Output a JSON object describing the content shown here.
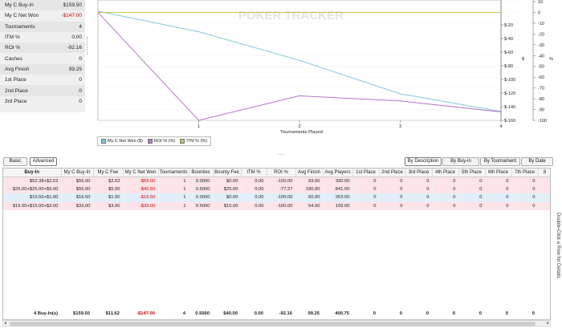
{
  "stats": [
    {
      "label": "My C Buy-In",
      "value": "$159.50",
      "neg": false
    },
    {
      "label": "My C Net Won",
      "value": "-$147.00",
      "neg": true
    },
    {
      "label": "Tournaments",
      "value": "4",
      "neg": false
    },
    {
      "label": "ITM %",
      "value": "0.00",
      "neg": false
    },
    {
      "label": "ROI %",
      "value": "-92.16",
      "neg": false
    },
    {
      "label": "Cashes",
      "value": "0",
      "neg": false
    },
    {
      "label": "Avg Finish",
      "value": "99.25",
      "neg": false
    },
    {
      "label": "1st Place",
      "value": "0",
      "neg": false
    },
    {
      "label": "2nd Place",
      "value": "0",
      "neg": false
    },
    {
      "label": "3rd Place",
      "value": "0",
      "neg": false
    }
  ],
  "watermark": "POKER TRACKER",
  "chart_data": {
    "type": "line",
    "xlabel": "Tournaments Played",
    "x": [
      0,
      1,
      2,
      3,
      4
    ],
    "xticks": [
      "1",
      "2",
      "3",
      "4"
    ],
    "xlim": [
      0,
      4
    ],
    "left_axis": {
      "ticks": [
        "$-20",
        "$-40",
        "$-60",
        "$-80",
        "$-100",
        "$-120",
        "$-140",
        "$-160"
      ],
      "label": "$",
      "ylim": [
        0,
        -160
      ]
    },
    "right_axis": {
      "ticks": [
        "10",
        "0",
        "-10",
        "-20",
        "-30",
        "-40",
        "-50",
        "-60",
        "-70",
        "-80",
        "-90",
        "-100"
      ],
      "label": "%",
      "ylim": [
        10,
        -100
      ]
    },
    "series": [
      {
        "name": "My C Net Won ($)",
        "axis": "left",
        "color": "#7fc8dc",
        "values": [
          0,
          -30,
          -72,
          -121,
          -147
        ]
      },
      {
        "name": "ROI % (%)",
        "axis": "right",
        "color": "#b873c8",
        "values": [
          0,
          -100,
          -77.27,
          -82,
          -92.16
        ]
      },
      {
        "name": "ITM % (%)",
        "axis": "right",
        "color": "#c8c060",
        "values": [
          0,
          0,
          0,
          0,
          0
        ]
      }
    ],
    "grid": true
  },
  "splitter": ".....",
  "toolbar": {
    "basic": "Basic",
    "advanced": "Advanced",
    "by_description": "By Description",
    "by_buyin": "By Buy-in",
    "by_tournament": "By Tournament",
    "by_date": "By Date"
  },
  "table": {
    "columns": [
      "Buy-In",
      "My C Buy-In",
      "My C Fee",
      "My C Net Won",
      "Tournaments",
      "Bounties",
      "Bounty Fee",
      "ITM %",
      "ROI %",
      "Avg Finish",
      "Avg Players",
      "1st Place",
      "2nd Place",
      "3rd Place",
      "4th Place",
      "5th Place",
      "6th Place",
      "7th Place",
      "8"
    ],
    "rows": [
      {
        "style": "pink",
        "cells": [
          "$52.38+$2.62",
          "$55.00",
          "$2.62",
          "-$55.00",
          "1",
          "0.0000",
          "$0.00",
          "0.00",
          "-100.00",
          "93.00",
          "390.00",
          "0",
          "0",
          "0",
          "0",
          "0",
          "0",
          "0",
          ""
        ]
      },
      {
        "style": "pink",
        "cells": [
          "$25.00+$25.00+$5.00",
          "$55.00",
          "$5.00",
          "-$42.50",
          "1",
          "0.5000",
          "$25.00",
          "0.00",
          "-77.27",
          "190.00",
          "841.00",
          "0",
          "0",
          "0",
          "0",
          "0",
          "0",
          "0",
          ""
        ]
      },
      {
        "style": "blue",
        "cells": [
          "$15.50+$1.00",
          "$16.50",
          "$1.00",
          "-$16.50",
          "1",
          "0.0000",
          "$0.00",
          "0.00",
          "-100.00",
          "60.00",
          "263.00",
          "0",
          "0",
          "0",
          "0",
          "0",
          "0",
          "0",
          ""
        ]
      },
      {
        "style": "pink",
        "cells": [
          "$15.00+$15.00+$3.00",
          "$33.00",
          "$3.00",
          "-$33.00",
          "1",
          "0.5000",
          "$15.00",
          "0.00",
          "-100.00",
          "54.00",
          "109.00",
          "0",
          "0",
          "0",
          "0",
          "0",
          "0",
          "0",
          ""
        ]
      }
    ],
    "totals": [
      "4 Buy-In(s)",
      "$159.50",
      "$11.62",
      "-$147.00",
      "4",
      "0.5000",
      "$40.00",
      "0.00",
      "-92.16",
      "99.25",
      "400.75",
      "0",
      "0",
      "0",
      "0",
      "0",
      "0",
      "0",
      ""
    ]
  },
  "hint": "Double-Click a Row for Details"
}
